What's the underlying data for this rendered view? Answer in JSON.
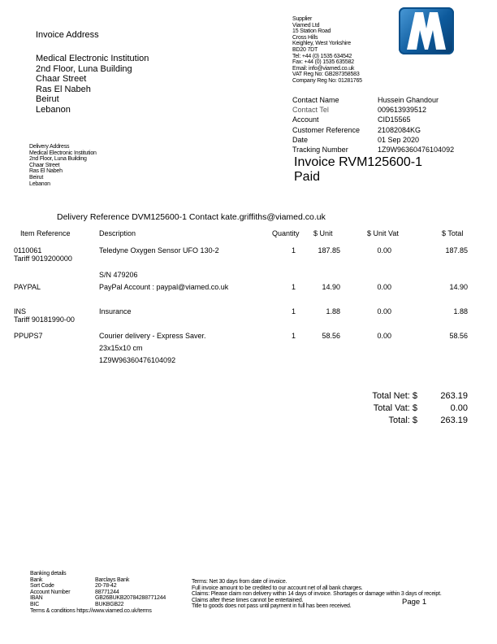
{
  "invoice_address": {
    "heading": "Invoice Address",
    "lines": [
      "Medical Electronic Institution",
      "2nd Floor,  Luna Building",
      "Chaar Street",
      "Ras El Nabeh",
      "Beirut",
      "Lebanon"
    ]
  },
  "delivery_address": {
    "heading": "Delivery Address",
    "lines": [
      "Medical Electronic Institution",
      "2nd Floor,  Luna Building",
      "Chaar Street",
      "Ras El Nabeh",
      "Beirut",
      "Lebanon"
    ]
  },
  "supplier": {
    "lines": [
      "Supplier",
      "Viamed Ltd",
      "15 Station Road",
      "Cross Hills",
      "Keighley, West Yorkshire",
      "BD20 7DT",
      "Tel: +44 (0) 1535 634542",
      "Fax: +44 (0) 1535 635582",
      "Email: info@viamed.co.uk",
      "VAT Reg No: GB287358583",
      "Company Reg No: 01281765"
    ]
  },
  "logo": {
    "text": "V",
    "color": "#0d5a9c"
  },
  "details": [
    {
      "label": "Contact Name",
      "value": "Hussein Ghandour"
    },
    {
      "label": "Contact Tel",
      "value": "009613939512"
    },
    {
      "label": "Account",
      "value": "CID15565"
    },
    {
      "label": "Customer Reference",
      "value": "21082084KG"
    },
    {
      "label": "Date",
      "value": "01 Sep 2020"
    },
    {
      "label": "Tracking Number",
      "value": "1Z9W96360476104092"
    }
  ],
  "invoice_title": "Invoice  RVM125600-1",
  "status": "Paid",
  "delivery_reference": "Delivery Reference  DVM125600-1 Contact kate.griffiths@viamed.co.uk",
  "table": {
    "headers": [
      "Item Reference",
      "Description",
      "Quantity",
      "$ Unit",
      "$ Unit Vat",
      "$ Total"
    ],
    "rows": [
      {
        "ref": "0110061",
        "ref2": "Tariff 9019200000",
        "desc": [
          "Teledyne Oxygen Sensor UFO 130-2",
          "",
          "S/N 479206"
        ],
        "qty": "1",
        "unit": "187.85",
        "vat": "0.00",
        "total": "187.85"
      },
      {
        "ref": "PAYPAL",
        "ref2": "",
        "desc": [
          "PayPal Account : paypal@viamed.co.uk"
        ],
        "qty": "1",
        "unit": "14.90",
        "vat": "0.00",
        "total": "14.90"
      },
      {
        "ref": "INS",
        "ref2": "Tariff 90181990-00",
        "desc": [
          "Insurance"
        ],
        "qty": "1",
        "unit": "1.88",
        "vat": "0.00",
        "total": "1.88"
      },
      {
        "ref": "PPUPS7",
        "ref2": "",
        "desc": [
          "Courier delivery - Express Saver.",
          "23x15x10 cm",
          "1Z9W96360476104092"
        ],
        "qty": "1",
        "unit": "58.56",
        "vat": "0.00",
        "total": "58.56"
      }
    ]
  },
  "totals": [
    {
      "label": "Total Net: $",
      "value": "263.19"
    },
    {
      "label": "Total Vat: $",
      "value": "0.00"
    },
    {
      "label": "Total: $",
      "value": "263.19"
    }
  ],
  "banking": {
    "heading": "Banking details",
    "rows": [
      {
        "label": "Bank",
        "value": "Barclays Bank"
      },
      {
        "label": "Sort Code",
        "value": "20-78-42"
      },
      {
        "label": "Account Number",
        "value": "88771244"
      },
      {
        "label": "IBAN",
        "value": "GB26BUKB20784288771244"
      },
      {
        "label": "BIC",
        "value": "BUKBGB22"
      }
    ],
    "terms_link": "Terms & conditions https://www.viamed.co.uk/terms"
  },
  "terms": [
    "Terms: Net 30 days from date of invoice.",
    "Full invoice amount to be credited to our account net of all bank charges.",
    "Claims: Please claim non delivery within 14 days of invoice. Shortages or damage within 3 days of receipt.",
    "Claims after these times cannot be entertained.",
    "Title to goods does not pass until payment in full has been received."
  ],
  "page_label": "Page 1"
}
